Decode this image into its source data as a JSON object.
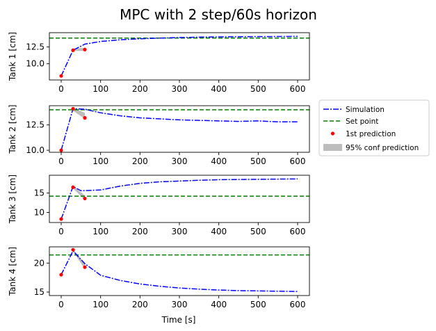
{
  "chart_data": {
    "type": "line",
    "title": "MPC with 2 step/60s horizon",
    "xlabel": "Time [s]",
    "legend": {
      "placement": "right",
      "entries": [
        "Simulation",
        "Set point",
        "1st prediction",
        "95% conf prediction"
      ]
    },
    "colors": {
      "simulation": "#0000ff",
      "setpoint": "#008000",
      "prediction": "#ff0000",
      "confidence": "#bdbdbd"
    },
    "x_ticks": [
      0,
      100,
      200,
      300,
      400,
      500,
      600
    ],
    "x_tick_labels": [
      "0",
      "100",
      "200",
      "300",
      "400",
      "500",
      "600"
    ],
    "xlim": [
      -30,
      630
    ],
    "grid": false,
    "subplots": [
      {
        "ylabel": "Tank 1 [cm]",
        "ylim": [
          7.6,
          14.6
        ],
        "y_ticks": [
          10.0,
          12.5
        ],
        "y_tick_labels": [
          "10.0",
          "12.5"
        ],
        "setpoint": 13.8,
        "simulation": {
          "x": [
            0,
            30,
            60,
            100,
            150,
            200,
            250,
            300,
            350,
            400,
            450,
            500,
            550,
            600
          ],
          "y": [
            8.2,
            12.0,
            12.9,
            13.3,
            13.55,
            13.7,
            13.8,
            13.88,
            13.94,
            13.98,
            14.0,
            14.02,
            14.03,
            14.05
          ]
        },
        "prediction": {
          "x": [
            0,
            30,
            60
          ],
          "y": [
            8.2,
            12.0,
            12.1
          ]
        },
        "confidence": {
          "x": [
            30,
            60
          ],
          "lower": [
            11.9,
            11.9
          ],
          "upper": [
            12.25,
            12.35
          ]
        }
      },
      {
        "ylabel": "Tank 2 [cm]",
        "ylim": [
          9.8,
          14.4
        ],
        "y_ticks": [
          10.0,
          12.5
        ],
        "y_tick_labels": [
          "10.0",
          "12.5"
        ],
        "setpoint": 14.0,
        "simulation": {
          "x": [
            0,
            30,
            60,
            100,
            150,
            200,
            250,
            300,
            350,
            400,
            450,
            500,
            550,
            600
          ],
          "y": [
            10.0,
            14.1,
            14.05,
            13.7,
            13.4,
            13.2,
            13.1,
            13.0,
            12.95,
            12.9,
            12.85,
            12.9,
            12.8,
            12.8
          ]
        },
        "prediction": {
          "x": [
            0,
            30,
            60
          ],
          "y": [
            10.0,
            14.1,
            13.2
          ]
        },
        "confidence": {
          "x": [
            30,
            60
          ],
          "lower": [
            13.9,
            13.1
          ],
          "upper": [
            14.2,
            13.7
          ]
        }
      },
      {
        "ylabel": "Tank 3 [cm]",
        "ylim": [
          7.4,
          19.6
        ],
        "y_ticks": [
          10,
          15
        ],
        "y_tick_labels": [
          "10",
          "15"
        ],
        "setpoint": 14.2,
        "simulation": {
          "x": [
            0,
            30,
            50,
            100,
            150,
            200,
            250,
            300,
            350,
            400,
            450,
            500,
            550,
            600
          ],
          "y": [
            8.3,
            16.7,
            15.6,
            15.8,
            16.8,
            17.5,
            17.9,
            18.1,
            18.3,
            18.45,
            18.5,
            18.55,
            18.6,
            18.65
          ]
        },
        "prediction": {
          "x": [
            0,
            30,
            60
          ],
          "y": [
            8.3,
            16.5,
            13.6
          ]
        },
        "confidence": {
          "x": [
            30,
            60
          ],
          "lower": [
            16.2,
            13.2
          ],
          "upper": [
            16.8,
            14.4
          ]
        }
      },
      {
        "ylabel": "Tank 4 [cm]",
        "ylim": [
          14.4,
          22.8
        ],
        "y_ticks": [
          15,
          20
        ],
        "y_tick_labels": [
          "15",
          "20"
        ],
        "setpoint": 21.4,
        "simulation": {
          "x": [
            0,
            30,
            60,
            100,
            150,
            200,
            250,
            300,
            350,
            400,
            450,
            500,
            550,
            600
          ],
          "y": [
            18.0,
            22.1,
            19.9,
            17.9,
            17.0,
            16.4,
            16.0,
            15.7,
            15.5,
            15.35,
            15.25,
            15.2,
            15.15,
            15.1
          ]
        },
        "prediction": {
          "x": [
            0,
            30,
            60
          ],
          "y": [
            18.0,
            22.3,
            19.3
          ]
        },
        "confidence": {
          "x": [
            30,
            60
          ],
          "lower": [
            22.0,
            19.0
          ],
          "upper": [
            22.4,
            19.9
          ]
        }
      }
    ]
  }
}
